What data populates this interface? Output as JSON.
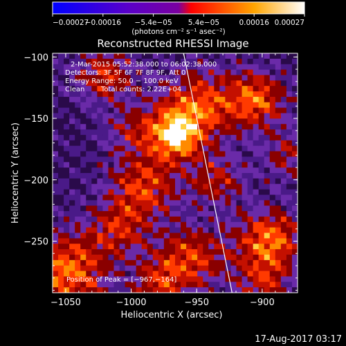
{
  "chart_data": {
    "type": "heatmap",
    "title": "Reconstructed RHESSI Image",
    "xlabel": "Heliocentric X (arcsec)",
    "ylabel": "Heliocentric Y (arcsec)",
    "xlim": [
      -1060,
      -873
    ],
    "ylim": [
      -292,
      -97
    ],
    "x_ticks": [
      -1050,
      -1000,
      -950,
      -900
    ],
    "y_ticks": [
      -100,
      -150,
      -200,
      -250
    ],
    "x_tick_labels": [
      "−1050",
      "−1000",
      "−950",
      "−900"
    ],
    "y_tick_labels": [
      "−100",
      "−150",
      "−200",
      "−250"
    ],
    "colorbar": {
      "range": [
        -0.00027,
        0.00027
      ],
      "tick_labels": [
        "−0.00027",
        "−0.00016",
        "−5.4e−05",
        "5.4e−05",
        "0.00016",
        "0.00027"
      ],
      "unit_label": "(photons cm⁻² s⁻¹ asec⁻²)",
      "colors": [
        "#0000ff",
        "#5a00c8",
        "#7a00a0",
        "#ff0000",
        "#ffa500",
        "#ffffff"
      ]
    },
    "annotations": {
      "time_range": "2-Mar-2015 05:52:38.000 to 06:02:38.000",
      "detectors": "Detectors: 3F 5F 6F 7F 8F 9F, Att 0",
      "energy_range": "Energy Range: 50.0 − 100.0 keV",
      "method": "Clean",
      "total_counts": "Total counts: 2.22E+04",
      "peak_position": "Position of Peak = [−967,−164]"
    },
    "peak": [
      -967,
      -164
    ],
    "limb_line": [
      [
        -960,
        -97
      ],
      [
        -923,
        -292
      ]
    ],
    "grid": false
  },
  "footer": {
    "timestamp": "17-Aug-2017 03:17"
  }
}
